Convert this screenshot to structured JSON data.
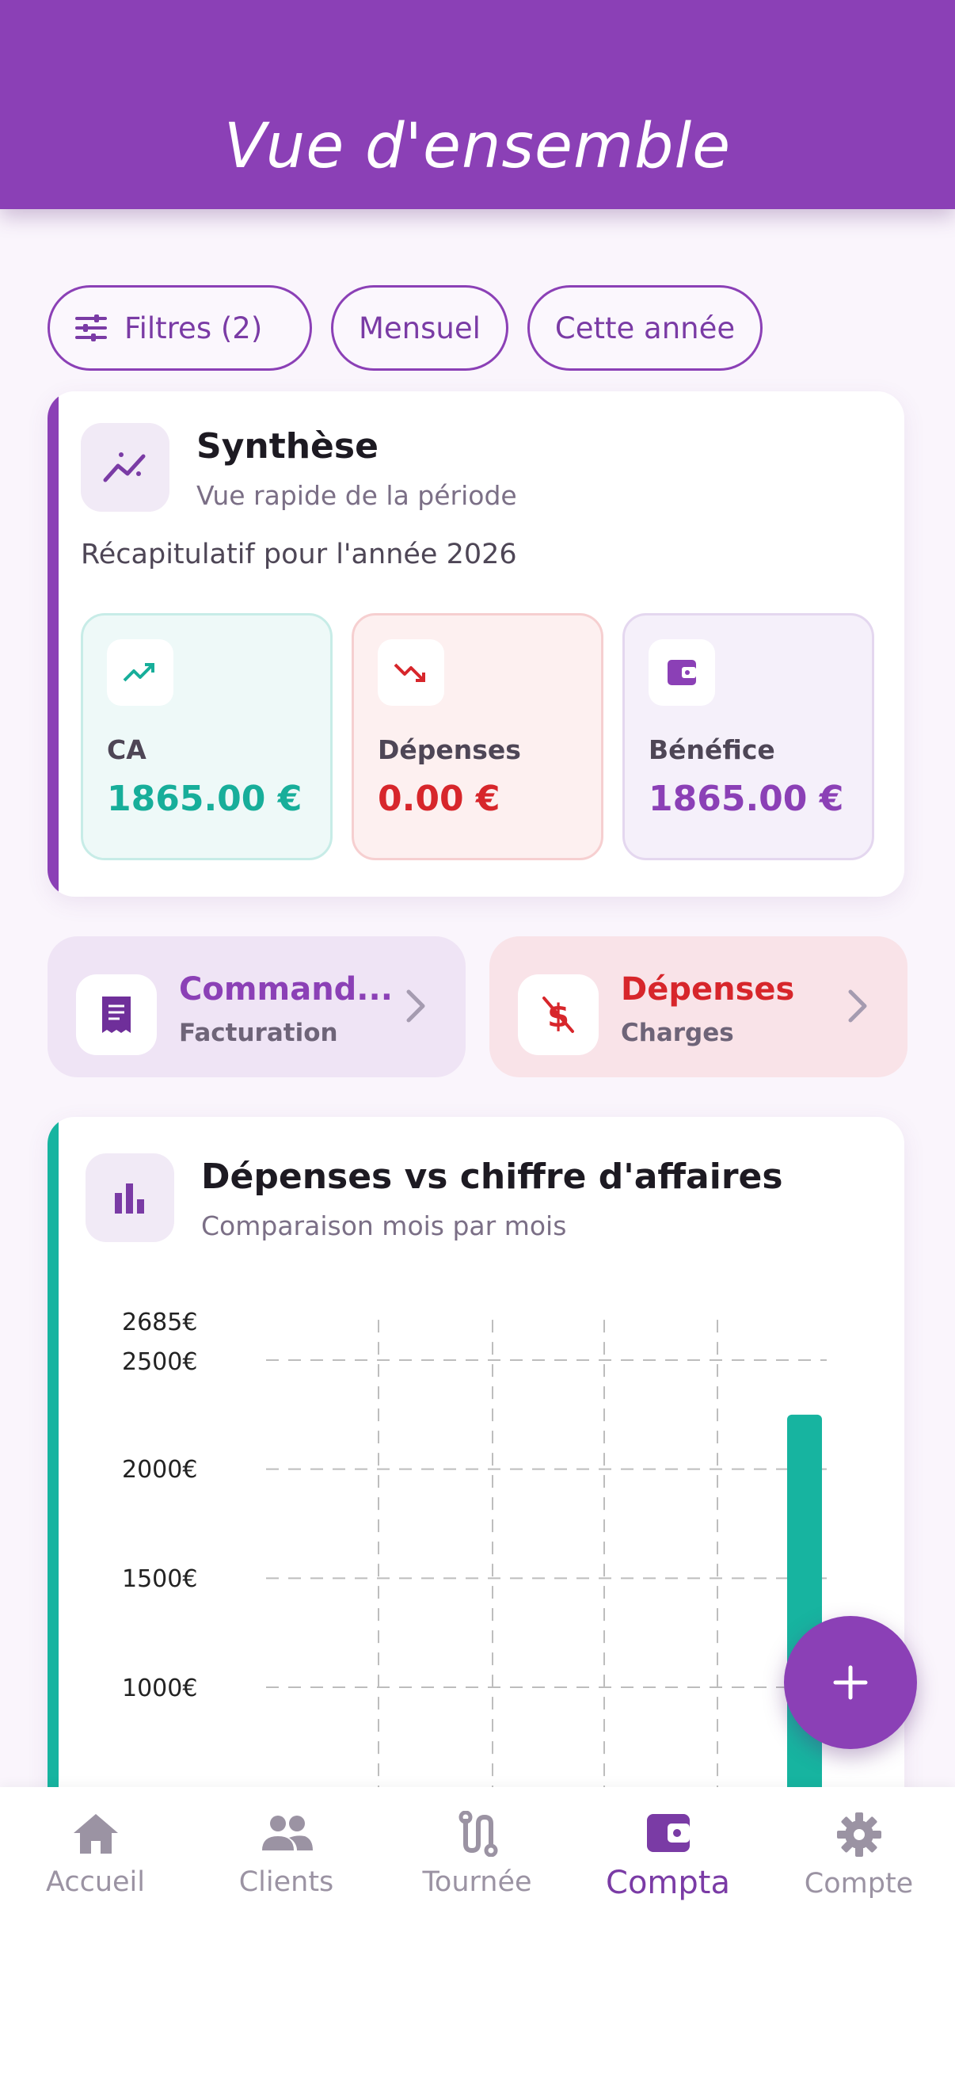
{
  "header": {
    "title": "Vue d'ensemble"
  },
  "filters": {
    "filters_label": "Filtres (2)",
    "period_label": "Mensuel",
    "year_label": "Cette année"
  },
  "synthese": {
    "title": "Synthèse",
    "subtitle": "Vue rapide de la période",
    "recap": "Récapitulatif pour l'année 2026",
    "stats": [
      {
        "label": "CA",
        "value": "1865.00 €",
        "color": "#17ae9a"
      },
      {
        "label": "Dépenses",
        "value": "0.00 €",
        "color": "#d7262b"
      },
      {
        "label": "Bénéfice",
        "value": "1865.00 €",
        "color": "#8b40b6"
      }
    ]
  },
  "shortcuts": [
    {
      "title": "Command...",
      "subtitle": "Facturation",
      "color": "#8b40b6"
    },
    {
      "title": "Dépenses",
      "subtitle": "Charges",
      "color": "#d7262b"
    }
  ],
  "chart_card": {
    "title": "Dépenses vs chiffre d'affaires",
    "subtitle": "Comparaison mois par mois"
  },
  "chart_data": {
    "type": "bar",
    "y_tick_labels": [
      "2685€",
      "2500€",
      "2000€",
      "1500€",
      "1000€"
    ],
    "y_ticks": [
      2685,
      2500,
      2000,
      1500,
      1000
    ],
    "ylim_visible": [
      1000,
      2685
    ],
    "bar_value": 2250,
    "bar_color": "#17b4a0",
    "grid": true
  },
  "bottom_nav": {
    "items": [
      {
        "label": "Accueil",
        "icon": "home-icon"
      },
      {
        "label": "Clients",
        "icon": "people-icon"
      },
      {
        "label": "Tournée",
        "icon": "route-icon"
      },
      {
        "label": "Compta",
        "icon": "wallet-icon"
      },
      {
        "label": "Compte",
        "icon": "gear-icon"
      }
    ],
    "active": "Compta"
  },
  "colors": {
    "brand": "#8b40b6",
    "teal": "#17ae9a",
    "red": "#d7262b"
  }
}
